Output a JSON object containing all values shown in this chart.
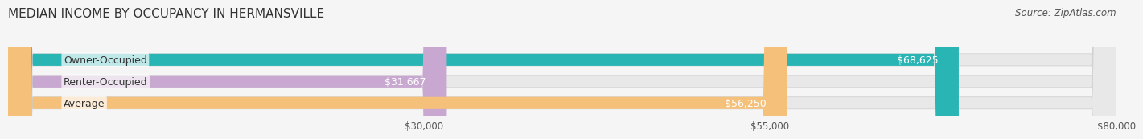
{
  "title": "MEDIAN INCOME BY OCCUPANCY IN HERMANSVILLE",
  "source": "Source: ZipAtlas.com",
  "categories": [
    "Owner-Occupied",
    "Renter-Occupied",
    "Average"
  ],
  "values": [
    68625,
    31667,
    56250
  ],
  "bar_colors": [
    "#2ab5b5",
    "#c8a8d0",
    "#f5c07a"
  ],
  "bar_labels": [
    "$68,625",
    "$31,667",
    "$56,250"
  ],
  "label_color": "#ffffff",
  "label_color_outside": "#555555",
  "xlim": [
    0,
    80000
  ],
  "xticks": [
    30000,
    55000,
    80000
  ],
  "xticklabels": [
    "$30,000",
    "$55,000",
    "$80,000"
  ],
  "background_color": "#f5f5f5",
  "bar_background_color": "#e8e8e8",
  "title_fontsize": 11,
  "source_fontsize": 8.5,
  "bar_height": 0.55,
  "label_fontsize": 9
}
